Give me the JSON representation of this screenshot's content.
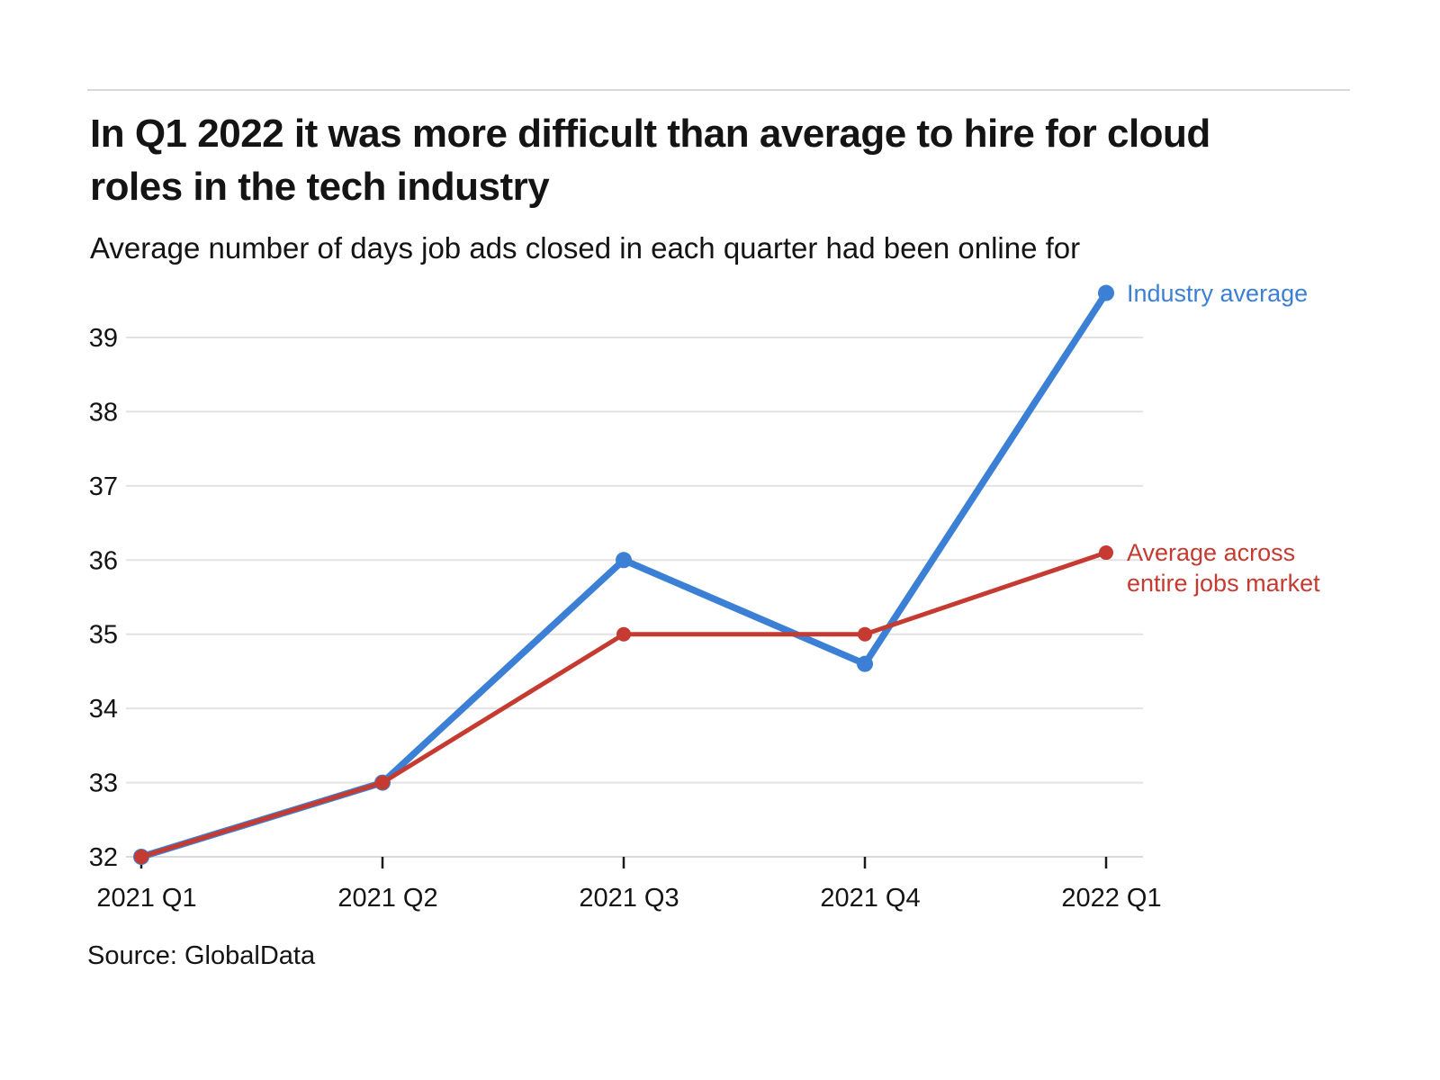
{
  "page": {
    "title": "In Q1 2022 it was more difficult than average to hire for cloud roles in the tech industry",
    "subtitle": "Average number of days job ads closed in each quarter had been online for",
    "source": "Source: GlobalData"
  },
  "chart_data": {
    "type": "line",
    "title": "In Q1 2022 it was more difficult than average to hire for cloud roles in the tech industry",
    "subtitle": "Average number of days job ads closed in each quarter had been online for",
    "categories": [
      "2021 Q1",
      "2021 Q2",
      "2021 Q3",
      "2021 Q4",
      "2022 Q1"
    ],
    "series": [
      {
        "name": "Industry average",
        "color": "#3c80d5",
        "values": [
          32,
          33,
          36,
          34.6,
          39.6
        ]
      },
      {
        "name": "Average across entire jobs market",
        "color": "#c53b31",
        "values": [
          32,
          33,
          35,
          35,
          36.1
        ]
      }
    ],
    "xlabel": "",
    "ylabel": "",
    "y_ticks": [
      32,
      33,
      34,
      35,
      36,
      37,
      38,
      39
    ],
    "ylim": [
      32,
      39.8
    ],
    "grid": true,
    "legend_position": "line-end-labels",
    "source": "Source: GlobalData"
  },
  "colors": {
    "background": "#ffffff",
    "grid": "#e2e2e2",
    "baseline": "#d9d9d9",
    "tick": "#1a1a1a",
    "text": "#141414",
    "rule": "#d9d9d9"
  }
}
